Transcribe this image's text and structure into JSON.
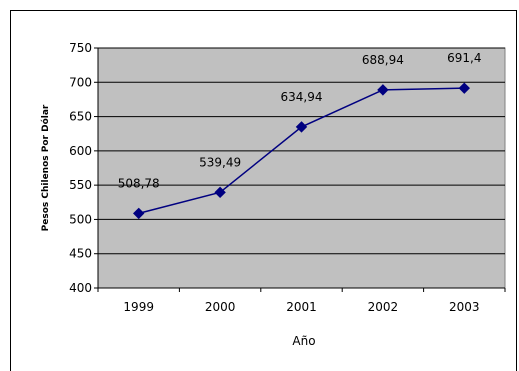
{
  "chart_data": {
    "type": "line",
    "title": "",
    "xlabel": "Año",
    "ylabel": "Pesos Chilenos Por Dólar",
    "categories": [
      "1999",
      "2000",
      "2001",
      "2002",
      "2003"
    ],
    "series": [
      {
        "values": [
          508.78,
          539.49,
          634.94,
          688.94,
          691.4
        ],
        "color": "#000080"
      }
    ],
    "data_labels": [
      "508,78",
      "539,49",
      "634,94",
      "688,94",
      "691,4"
    ],
    "ylim": [
      400,
      750
    ],
    "yticks": [
      "400",
      "450",
      "500",
      "550",
      "600",
      "650",
      "700",
      "750"
    ],
    "grid": true,
    "legend": "none",
    "plot_background": "#c0c0c0",
    "marker": "diamond"
  }
}
